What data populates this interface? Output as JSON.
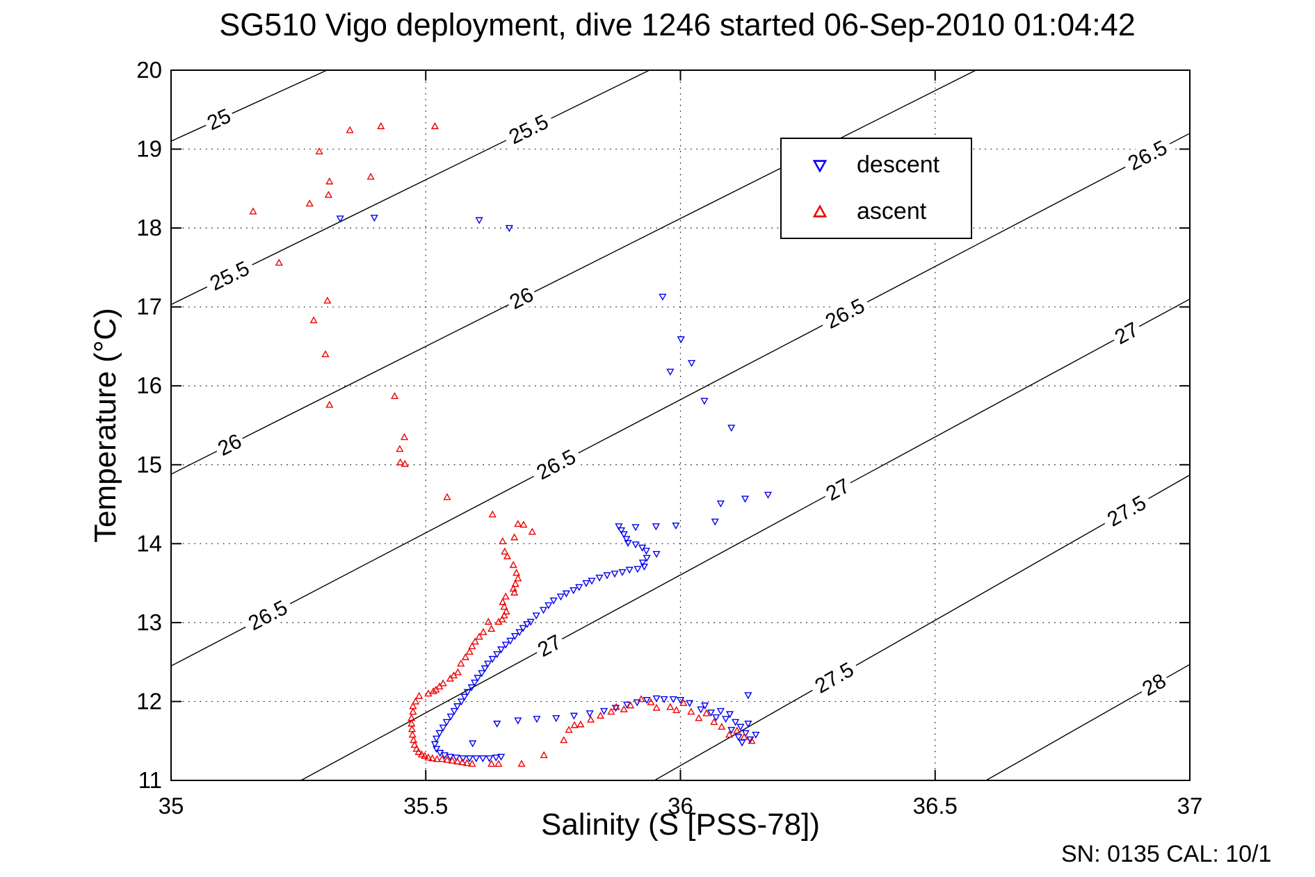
{
  "chart_data": {
    "type": "scatter",
    "title": "SG510 Vigo deployment, dive 1246 started 06-Sep-2010 01:04:42",
    "xlabel": "Salinity (S [PSS-78])",
    "ylabel": "Temperature (°C)",
    "xlim": [
      35,
      37
    ],
    "ylim": [
      11,
      20
    ],
    "x_ticks": [
      35,
      35.5,
      36,
      36.5,
      37
    ],
    "x_tick_labels": [
      "35",
      "35.5",
      "36",
      "36.5",
      "37"
    ],
    "y_ticks": [
      11,
      12,
      13,
      14,
      15,
      16,
      17,
      18,
      19,
      20
    ],
    "y_tick_labels": [
      "11",
      "12",
      "13",
      "14",
      "15",
      "16",
      "17",
      "18",
      "19",
      "20"
    ],
    "grid": "dotted",
    "annotation_bottom_right": "SN: 0135  CAL: 10/1",
    "axis_color": "#000000",
    "legend": {
      "position": "upper-right-inside",
      "items": [
        {
          "label": "descent",
          "color": "#0000ee",
          "marker": "triangle-down"
        },
        {
          "label": "ascent",
          "color": "#ee0000",
          "marker": "triangle-up"
        }
      ]
    },
    "density_contours": [
      {
        "level": "25",
        "line": [
          [
            35.0,
            19.1
          ],
          [
            35.306,
            20.0
          ]
        ],
        "label_s": [
          35.094
        ]
      },
      {
        "level": "25.5",
        "line": [
          [
            35.0,
            17.03
          ],
          [
            35.939,
            20.0
          ]
        ],
        "label_s": [
          35.115,
          35.702
        ]
      },
      {
        "level": "26",
        "line": [
          [
            35.0,
            14.88
          ],
          [
            36.58,
            20.0
          ]
        ],
        "label_s": [
          35.115,
          35.688
        ]
      },
      {
        "level": "26.5",
        "line": [
          [
            35.0,
            12.45
          ],
          [
            37.0,
            19.2
          ]
        ],
        "label_s": [
          35.19,
          35.756,
          36.323,
          36.917
        ]
      },
      {
        "level": "27",
        "line": [
          [
            35.255,
            11.0
          ],
          [
            37.0,
            17.1
          ]
        ],
        "label_s": [
          35.743,
          36.309,
          36.876
        ]
      },
      {
        "level": "27.5",
        "line": [
          [
            35.949,
            11.0
          ],
          [
            37.0,
            14.87
          ]
        ],
        "label_s": [
          36.302,
          36.876
        ]
      },
      {
        "level": "28",
        "line": [
          [
            36.6,
            11.0
          ],
          [
            37.0,
            12.47
          ]
        ],
        "label_s": [
          36.93
        ]
      }
    ],
    "series": [
      {
        "name": "descent",
        "color": "#0000ee",
        "marker": "triangle-down",
        "points": [
          [
            35.332,
            18.12
          ],
          [
            35.399,
            18.13
          ],
          [
            35.605,
            18.1
          ],
          [
            35.664,
            18.0
          ],
          [
            35.965,
            17.13
          ],
          [
            36.001,
            16.59
          ],
          [
            36.022,
            16.29
          ],
          [
            35.98,
            16.18
          ],
          [
            36.047,
            15.81
          ],
          [
            36.1,
            15.47
          ],
          [
            36.172,
            14.62
          ],
          [
            36.127,
            14.57
          ],
          [
            36.079,
            14.51
          ],
          [
            36.068,
            14.28
          ],
          [
            35.991,
            14.23
          ],
          [
            35.952,
            14.22
          ],
          [
            35.912,
            14.21
          ],
          [
            35.879,
            14.22
          ],
          [
            35.884,
            14.17
          ],
          [
            35.889,
            14.12
          ],
          [
            35.894,
            14.06
          ],
          [
            35.897,
            14.01
          ],
          [
            35.912,
            13.99
          ],
          [
            35.925,
            13.95
          ],
          [
            35.933,
            13.91
          ],
          [
            35.953,
            13.87
          ],
          [
            35.934,
            13.82
          ],
          [
            35.926,
            13.76
          ],
          [
            35.929,
            13.71
          ],
          [
            35.916,
            13.68
          ],
          [
            35.9,
            13.67
          ],
          [
            35.886,
            13.64
          ],
          [
            35.871,
            13.62
          ],
          [
            35.856,
            13.6
          ],
          [
            35.841,
            13.57
          ],
          [
            35.826,
            13.53
          ],
          [
            35.815,
            13.5
          ],
          [
            35.801,
            13.45
          ],
          [
            35.79,
            13.41
          ],
          [
            35.776,
            13.37
          ],
          [
            35.765,
            13.33
          ],
          [
            35.751,
            13.28
          ],
          [
            35.741,
            13.22
          ],
          [
            35.731,
            13.16
          ],
          [
            35.717,
            13.09
          ],
          [
            35.706,
            13.01
          ],
          [
            35.699,
            12.98
          ],
          [
            35.691,
            12.93
          ],
          [
            35.684,
            12.88
          ],
          [
            35.675,
            12.83
          ],
          [
            35.666,
            12.77
          ],
          [
            35.657,
            12.72
          ],
          [
            35.648,
            12.66
          ],
          [
            35.64,
            12.6
          ],
          [
            35.631,
            12.54
          ],
          [
            35.622,
            12.48
          ],
          [
            35.616,
            12.42
          ],
          [
            35.61,
            12.36
          ],
          [
            35.602,
            12.3
          ],
          [
            35.596,
            12.24
          ],
          [
            35.59,
            12.18
          ],
          [
            35.582,
            12.12
          ],
          [
            35.576,
            12.06
          ],
          [
            35.57,
            12.0
          ],
          [
            35.562,
            11.94
          ],
          [
            35.556,
            11.88
          ],
          [
            35.549,
            11.81
          ],
          [
            35.541,
            11.74
          ],
          [
            35.534,
            11.67
          ],
          [
            35.527,
            11.6
          ],
          [
            35.521,
            11.53
          ],
          [
            35.518,
            11.46
          ],
          [
            35.521,
            11.4
          ],
          [
            35.528,
            11.35
          ],
          [
            35.537,
            11.32
          ],
          [
            35.548,
            11.3
          ],
          [
            35.56,
            11.29
          ],
          [
            35.573,
            11.28
          ],
          [
            35.586,
            11.28
          ],
          [
            35.599,
            11.28
          ],
          [
            35.612,
            11.28
          ],
          [
            35.625,
            11.28
          ],
          [
            35.638,
            11.29
          ],
          [
            35.648,
            11.3
          ],
          [
            35.64,
            11.72
          ],
          [
            35.592,
            11.47
          ],
          [
            35.681,
            11.76
          ],
          [
            35.718,
            11.78
          ],
          [
            35.756,
            11.79
          ],
          [
            35.791,
            11.82
          ],
          [
            35.822,
            11.85
          ],
          [
            35.85,
            11.88
          ],
          [
            35.873,
            11.92
          ],
          [
            35.895,
            11.96
          ],
          [
            35.915,
            11.99
          ],
          [
            35.934,
            12.02
          ],
          [
            35.953,
            12.04
          ],
          [
            35.968,
            12.03
          ],
          [
            35.986,
            12.03
          ],
          [
            36.0,
            12.02
          ],
          [
            36.018,
            11.98
          ],
          [
            36.048,
            11.95
          ],
          [
            36.04,
            11.9
          ],
          [
            36.06,
            11.86
          ],
          [
            36.079,
            11.88
          ],
          [
            36.097,
            11.84
          ],
          [
            36.089,
            11.78
          ],
          [
            36.108,
            11.74
          ],
          [
            36.118,
            11.68
          ],
          [
            36.1,
            11.64
          ],
          [
            36.128,
            11.6
          ],
          [
            36.114,
            11.55
          ],
          [
            36.137,
            11.52
          ],
          [
            36.121,
            11.48
          ],
          [
            36.148,
            11.58
          ],
          [
            36.133,
            11.72
          ],
          [
            36.07,
            11.8
          ],
          [
            36.133,
            12.08
          ]
        ]
      },
      {
        "name": "ascent",
        "color": "#ee0000",
        "marker": "triangle-up",
        "points": [
          [
            35.351,
            19.24
          ],
          [
            35.412,
            19.29
          ],
          [
            35.518,
            19.29
          ],
          [
            35.291,
            18.97
          ],
          [
            35.392,
            18.65
          ],
          [
            35.311,
            18.59
          ],
          [
            35.309,
            18.42
          ],
          [
            35.272,
            18.31
          ],
          [
            35.161,
            18.21
          ],
          [
            35.212,
            17.56
          ],
          [
            35.307,
            17.08
          ],
          [
            35.28,
            16.83
          ],
          [
            35.303,
            16.4
          ],
          [
            35.439,
            15.87
          ],
          [
            35.311,
            15.76
          ],
          [
            35.458,
            15.35
          ],
          [
            35.449,
            15.2
          ],
          [
            35.45,
            15.03
          ],
          [
            35.459,
            15.01
          ],
          [
            35.542,
            14.59
          ],
          [
            35.631,
            14.37
          ],
          [
            35.681,
            14.25
          ],
          [
            35.692,
            14.24
          ],
          [
            35.709,
            14.15
          ],
          [
            35.674,
            14.08
          ],
          [
            35.651,
            14.03
          ],
          [
            35.655,
            13.9
          ],
          [
            35.66,
            13.84
          ],
          [
            35.672,
            13.73
          ],
          [
            35.678,
            13.63
          ],
          [
            35.681,
            13.56
          ],
          [
            35.676,
            13.49
          ],
          [
            35.672,
            13.43
          ],
          [
            35.674,
            13.38
          ],
          [
            35.657,
            13.33
          ],
          [
            35.651,
            13.26
          ],
          [
            35.654,
            13.2
          ],
          [
            35.658,
            13.14
          ],
          [
            35.654,
            13.09
          ],
          [
            35.65,
            13.04
          ],
          [
            35.643,
            13.01
          ],
          [
            35.623,
            13.01
          ],
          [
            35.629,
            12.92
          ],
          [
            35.613,
            12.88
          ],
          [
            35.605,
            12.82
          ],
          [
            35.597,
            12.76
          ],
          [
            35.591,
            12.7
          ],
          [
            35.586,
            12.63
          ],
          [
            35.578,
            12.56
          ],
          [
            35.569,
            12.48
          ],
          [
            35.563,
            12.37
          ],
          [
            35.555,
            12.33
          ],
          [
            35.548,
            12.29
          ],
          [
            35.534,
            12.23
          ],
          [
            35.527,
            12.19
          ],
          [
            35.52,
            12.15
          ],
          [
            35.515,
            12.13
          ],
          [
            35.505,
            12.1
          ],
          [
            35.487,
            12.07
          ],
          [
            35.48,
            12.0
          ],
          [
            35.475,
            11.94
          ],
          [
            35.475,
            11.87
          ],
          [
            35.472,
            11.79
          ],
          [
            35.472,
            11.72
          ],
          [
            35.473,
            11.65
          ],
          [
            35.474,
            11.58
          ],
          [
            35.476,
            11.51
          ],
          [
            35.478,
            11.45
          ],
          [
            35.482,
            11.4
          ],
          [
            35.486,
            11.36
          ],
          [
            35.492,
            11.33
          ],
          [
            35.498,
            11.31
          ],
          [
            35.505,
            11.29
          ],
          [
            35.513,
            11.28
          ],
          [
            35.522,
            11.27
          ],
          [
            35.532,
            11.27
          ],
          [
            35.542,
            11.26
          ],
          [
            35.552,
            11.25
          ],
          [
            35.562,
            11.24
          ],
          [
            35.572,
            11.23
          ],
          [
            35.581,
            11.22
          ],
          [
            35.591,
            11.21
          ],
          [
            35.629,
            11.21
          ],
          [
            35.643,
            11.21
          ],
          [
            35.688,
            11.21
          ],
          [
            35.732,
            11.32
          ],
          [
            35.771,
            11.51
          ],
          [
            35.781,
            11.64
          ],
          [
            35.792,
            11.7
          ],
          [
            35.804,
            11.71
          ],
          [
            35.824,
            11.77
          ],
          [
            35.843,
            11.82
          ],
          [
            35.864,
            11.87
          ],
          [
            35.874,
            11.93
          ],
          [
            35.889,
            11.9
          ],
          [
            35.902,
            11.95
          ],
          [
            35.923,
            12.03
          ],
          [
            35.942,
            11.99
          ],
          [
            35.953,
            11.92
          ],
          [
            35.98,
            11.93
          ],
          [
            35.992,
            11.89
          ],
          [
            36.006,
            11.98
          ],
          [
            36.021,
            11.87
          ],
          [
            36.036,
            11.79
          ],
          [
            36.051,
            11.85
          ],
          [
            36.066,
            11.74
          ],
          [
            36.081,
            11.68
          ],
          [
            36.096,
            11.58
          ],
          [
            36.111,
            11.63
          ],
          [
            36.125,
            11.55
          ],
          [
            36.14,
            11.5
          ]
        ]
      }
    ]
  }
}
